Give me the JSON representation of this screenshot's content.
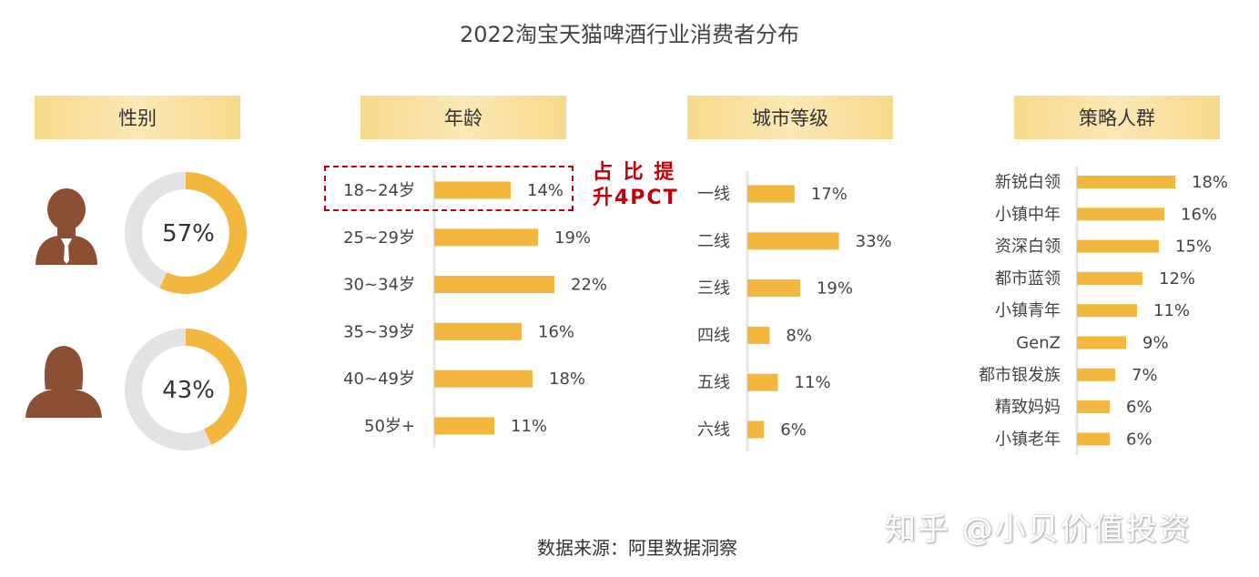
{
  "title": "2022淘宝天猫啤酒行业消费者分布",
  "source": "数据来源：阿里数据洞察",
  "watermark": "知乎 @小贝价值投资",
  "callout": {
    "line1": "占 比 提",
    "line2": "升4PCT"
  },
  "colors": {
    "bar": "#f2b73c",
    "donut_track": "#e3e3e3",
    "avatar": "#8b4f33",
    "callout": "#c0000b"
  },
  "icons": [
    "male-avatar-icon",
    "female-avatar-icon"
  ],
  "chart_data": [
    {
      "type": "pie",
      "subtype": "donut",
      "header": "性别",
      "slices": [
        {
          "icon": "male-avatar-icon",
          "value": 57,
          "label": "57%"
        },
        {
          "icon": "female-avatar-icon",
          "value": 43,
          "label": "43%"
        }
      ]
    },
    {
      "type": "bar",
      "orientation": "horizontal",
      "header": "年龄",
      "categories": [
        "18~24岁",
        "25~29岁",
        "30~34岁",
        "35~39岁",
        "40~49岁",
        "50岁+"
      ],
      "values": [
        14,
        19,
        22,
        16,
        18,
        11
      ],
      "labels": [
        "14%",
        "19%",
        "22%",
        "16%",
        "18%",
        "11%"
      ],
      "highlighted": "18~24岁"
    },
    {
      "type": "bar",
      "orientation": "horizontal",
      "header": "城市等级",
      "categories": [
        "一线",
        "二线",
        "三线",
        "四线",
        "五线",
        "六线"
      ],
      "values": [
        17,
        33,
        19,
        8,
        11,
        6
      ],
      "labels": [
        "17%",
        "33%",
        "19%",
        "8%",
        "11%",
        "6%"
      ]
    },
    {
      "type": "bar",
      "orientation": "horizontal",
      "header": "策略人群",
      "categories": [
        "新锐白领",
        "小镇中年",
        "资深白领",
        "都市蓝领",
        "小镇青年",
        "GenZ",
        "都市银发族",
        "精致妈妈",
        "小镇老年"
      ],
      "values": [
        18,
        16,
        15,
        12,
        11,
        9,
        7,
        6,
        6
      ],
      "labels": [
        "18%",
        "16%",
        "15%",
        "12%",
        "11%",
        "9%",
        "7%",
        "6%",
        "6%"
      ]
    }
  ]
}
